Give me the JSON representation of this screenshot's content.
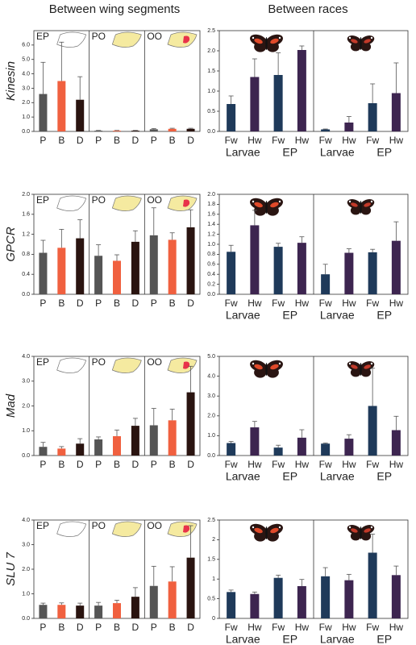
{
  "headers": [
    "Between wing segments",
    "Between races"
  ],
  "chart_data": [
    {
      "type": "bar",
      "ylabel": "Kinesin",
      "ylim": [
        0,
        7
      ],
      "yticks": [
        {
          "value": 0,
          "label": "0.0"
        },
        {
          "value": 1,
          "label": "1.0"
        },
        {
          "value": 2,
          "label": "2.0"
        },
        {
          "value": 3,
          "label": "3.0"
        },
        {
          "value": 4,
          "label": "4.0"
        },
        {
          "value": 5,
          "label": "5.0"
        },
        {
          "value": 6,
          "label": "6.0"
        }
      ],
      "colors": [
        "#555555",
        "#f0603f",
        "#2a1410"
      ],
      "groups": [
        {
          "name": "EP",
          "categories": [
            "P",
            "B",
            "D"
          ],
          "values": [
            2.6,
            3.5,
            2.2
          ],
          "errors": [
            2.2,
            2.7,
            1.6
          ]
        },
        {
          "name": "PO",
          "categories": [
            "P",
            "B",
            "D"
          ],
          "values": [
            0.05,
            0.05,
            0.05
          ],
          "errors": [
            0.02,
            0.02,
            0.02
          ]
        },
        {
          "name": "OO",
          "categories": [
            "P",
            "B",
            "D"
          ],
          "values": [
            0.15,
            0.18,
            0.18
          ],
          "errors": [
            0.05,
            0.04,
            0.04
          ]
        }
      ]
    },
    {
      "type": "bar",
      "ylim": [
        0,
        2.5
      ],
      "yticks": [
        {
          "value": 0,
          "label": "0.0"
        },
        0.5,
        {
          "value": 1,
          "label": "1.0"
        },
        1.5,
        {
          "value": 2,
          "label": "2.0"
        },
        2.5
      ],
      "colors": [
        "#1f3a5a",
        "#3d2550",
        "#1f3a5a",
        "#3d2550"
      ],
      "stages": [
        "Larvae",
        "EP"
      ],
      "groups": [
        {
          "categories": [
            "Fw",
            "Hw",
            "Fw",
            "Hw"
          ],
          "values": [
            0.68,
            1.35,
            1.4,
            2.02
          ],
          "errors": [
            0.2,
            0.45,
            0.55,
            0.1
          ]
        },
        {
          "categories": [
            "Fw",
            "Hw",
            "Fw",
            "Hw"
          ],
          "values": [
            0.05,
            0.22,
            0.7,
            0.95
          ],
          "errors": [
            0.01,
            0.15,
            0.48,
            0.75
          ]
        }
      ]
    },
    {
      "type": "bar",
      "ylabel": "GPCR",
      "ylim": [
        0,
        2
      ],
      "yticks": [
        {
          "value": 0,
          "label": "0.0"
        },
        0.4,
        0.8,
        1.2,
        1.6,
        {
          "value": 2,
          "label": "2.0"
        }
      ],
      "colors": [
        "#555555",
        "#f0603f",
        "#2a1410"
      ],
      "groups": [
        {
          "name": "EP",
          "categories": [
            "P",
            "B",
            "D"
          ],
          "values": [
            0.83,
            0.93,
            1.12
          ],
          "errors": [
            0.25,
            0.37,
            0.37
          ]
        },
        {
          "name": "PO",
          "categories": [
            "P",
            "B",
            "D"
          ],
          "values": [
            0.77,
            0.67,
            1.05
          ],
          "errors": [
            0.22,
            0.12,
            0.22
          ]
        },
        {
          "name": "OO",
          "categories": [
            "P",
            "B",
            "D"
          ],
          "values": [
            1.18,
            1.09,
            1.34
          ],
          "errors": [
            0.55,
            0.14,
            0.35
          ]
        }
      ]
    },
    {
      "type": "bar",
      "ylim": [
        0,
        2
      ],
      "yticks": [
        {
          "value": 0,
          "label": "0.0"
        },
        0.2,
        0.4,
        0.6,
        0.8,
        {
          "value": 1,
          "label": "1.0"
        },
        1.2,
        1.4,
        1.6,
        1.8,
        {
          "value": 2,
          "label": "2.0"
        }
      ],
      "colors": [
        "#1f3a5a",
        "#3d2550",
        "#1f3a5a",
        "#3d2550"
      ],
      "stages": [
        "Larvae",
        "EP"
      ],
      "groups": [
        {
          "categories": [
            "Fw",
            "Hw",
            "Fw",
            "Hw"
          ],
          "values": [
            0.85,
            1.38,
            0.95,
            1.03
          ],
          "errors": [
            0.13,
            0.3,
            0.07,
            0.12
          ]
        },
        {
          "categories": [
            "Fw",
            "Hw",
            "Fw",
            "Hw"
          ],
          "values": [
            0.4,
            0.83,
            0.84,
            1.07
          ],
          "errors": [
            0.2,
            0.08,
            0.06,
            0.38
          ]
        }
      ]
    },
    {
      "type": "bar",
      "ylabel": "Mad",
      "ylim": [
        0,
        4
      ],
      "yticks": [
        {
          "value": 0,
          "label": "0.0"
        },
        {
          "value": 1,
          "label": "1.0"
        },
        {
          "value": 2,
          "label": "2.0"
        },
        {
          "value": 3,
          "label": "3.0"
        },
        {
          "value": 4,
          "label": "4.0"
        }
      ],
      "colors": [
        "#555555",
        "#f0603f",
        "#2a1410"
      ],
      "groups": [
        {
          "name": "EP",
          "categories": [
            "P",
            "B",
            "D"
          ],
          "values": [
            0.35,
            0.28,
            0.48
          ],
          "errors": [
            0.18,
            0.08,
            0.2
          ]
        },
        {
          "name": "PO",
          "categories": [
            "P",
            "B",
            "D"
          ],
          "values": [
            0.65,
            0.78,
            1.2
          ],
          "errors": [
            0.1,
            0.25,
            0.3
          ]
        },
        {
          "name": "OO",
          "categories": [
            "P",
            "B",
            "D"
          ],
          "values": [
            1.22,
            1.42,
            2.55
          ],
          "errors": [
            0.68,
            0.45,
            1.05
          ]
        }
      ]
    },
    {
      "type": "bar",
      "ylim": [
        0,
        5
      ],
      "yticks": [
        {
          "value": 0,
          "label": "0.0"
        },
        {
          "value": 1,
          "label": "1.0"
        },
        {
          "value": 2,
          "label": "2.0"
        },
        {
          "value": 3,
          "label": "3.0"
        },
        {
          "value": 4,
          "label": "4.0"
        },
        {
          "value": 5,
          "label": "5.0"
        }
      ],
      "colors": [
        "#1f3a5a",
        "#3d2550",
        "#1f3a5a",
        "#3d2550"
      ],
      "stages": [
        "Larvae",
        "EP"
      ],
      "groups": [
        {
          "categories": [
            "Fw",
            "Hw",
            "Fw",
            "Hw"
          ],
          "values": [
            0.63,
            1.42,
            0.4,
            0.9
          ],
          "errors": [
            0.08,
            0.3,
            0.12,
            0.4
          ]
        },
        {
          "categories": [
            "Fw",
            "Hw",
            "Fw",
            "Hw"
          ],
          "values": [
            0.6,
            0.85,
            2.5,
            1.28
          ],
          "errors": [
            0.03,
            0.2,
            1.9,
            0.7
          ]
        }
      ]
    },
    {
      "type": "bar",
      "ylabel": "SLU 7",
      "ylim": [
        0,
        4
      ],
      "yticks": [
        {
          "value": 0,
          "label": "0.0"
        },
        {
          "value": 1,
          "label": "1.0"
        },
        {
          "value": 2,
          "label": "2.0"
        },
        {
          "value": 3,
          "label": "3.0"
        },
        {
          "value": 4,
          "label": "4.0"
        }
      ],
      "colors": [
        "#555555",
        "#f0603f",
        "#2a1410"
      ],
      "groups": [
        {
          "name": "EP",
          "categories": [
            "P",
            "B",
            "D"
          ],
          "values": [
            0.55,
            0.55,
            0.52
          ],
          "errors": [
            0.07,
            0.08,
            0.1
          ]
        },
        {
          "name": "PO",
          "categories": [
            "P",
            "B",
            "D"
          ],
          "values": [
            0.52,
            0.62,
            0.88
          ],
          "errors": [
            0.13,
            0.12,
            0.37
          ]
        },
        {
          "name": "OO",
          "categories": [
            "P",
            "B",
            "D"
          ],
          "values": [
            1.32,
            1.5,
            2.47
          ],
          "errors": [
            0.8,
            0.6,
            1.3
          ]
        }
      ]
    },
    {
      "type": "bar",
      "ylim": [
        0,
        2.5
      ],
      "yticks": [
        0,
        0.5,
        1,
        1.5,
        2,
        2.5
      ],
      "colors": [
        "#1f3a5a",
        "#3d2550",
        "#1f3a5a",
        "#3d2550"
      ],
      "stages": [
        "Larvae",
        "EP"
      ],
      "groups": [
        {
          "categories": [
            "Fw",
            "Hw",
            "Fw",
            "Hw"
          ],
          "values": [
            0.67,
            0.62,
            1.03,
            0.82
          ],
          "errors": [
            0.05,
            0.05,
            0.07,
            0.17
          ]
        },
        {
          "categories": [
            "Fw",
            "Hw",
            "Fw",
            "Hw"
          ],
          "values": [
            1.07,
            0.97,
            1.67,
            1.1
          ],
          "errors": [
            0.22,
            0.15,
            0.47,
            0.23
          ]
        }
      ]
    }
  ]
}
